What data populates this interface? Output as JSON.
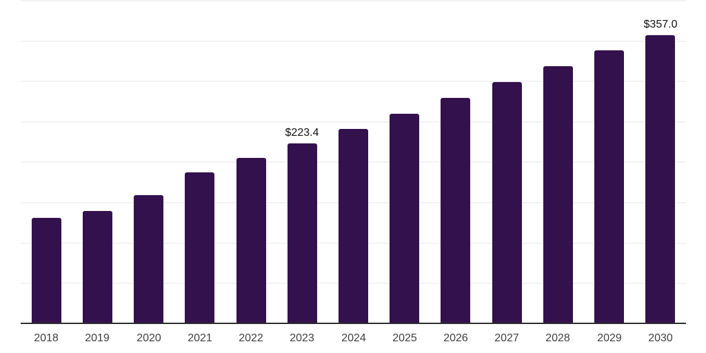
{
  "chart_data": {
    "type": "bar",
    "title": "",
    "xlabel": "",
    "ylabel": "",
    "categories": [
      "2018",
      "2019",
      "2020",
      "2021",
      "2022",
      "2023",
      "2024",
      "2025",
      "2026",
      "2027",
      "2028",
      "2029",
      "2030"
    ],
    "values": [
      131.4,
      140.0,
      159.6,
      187.7,
      205.7,
      223.4,
      241.5,
      260.3,
      279.9,
      299.5,
      319.2,
      338.8,
      357.0
    ],
    "labeled_points": [
      {
        "category": "2023",
        "label": "$223.4"
      },
      {
        "category": "2030",
        "label": "$357.0"
      }
    ],
    "ylim": [
      0,
      400
    ],
    "gridline_step": 50,
    "grid": "horizontal-only",
    "legend": "none",
    "y_tick_labels_visible": false
  },
  "colors": {
    "bar": "#33114D",
    "grid": "#F2F2F4",
    "axis": "#2E2E2E",
    "tick_label": "#3E3E3E",
    "value_label": "#101010",
    "background": "#FFFFFF"
  }
}
